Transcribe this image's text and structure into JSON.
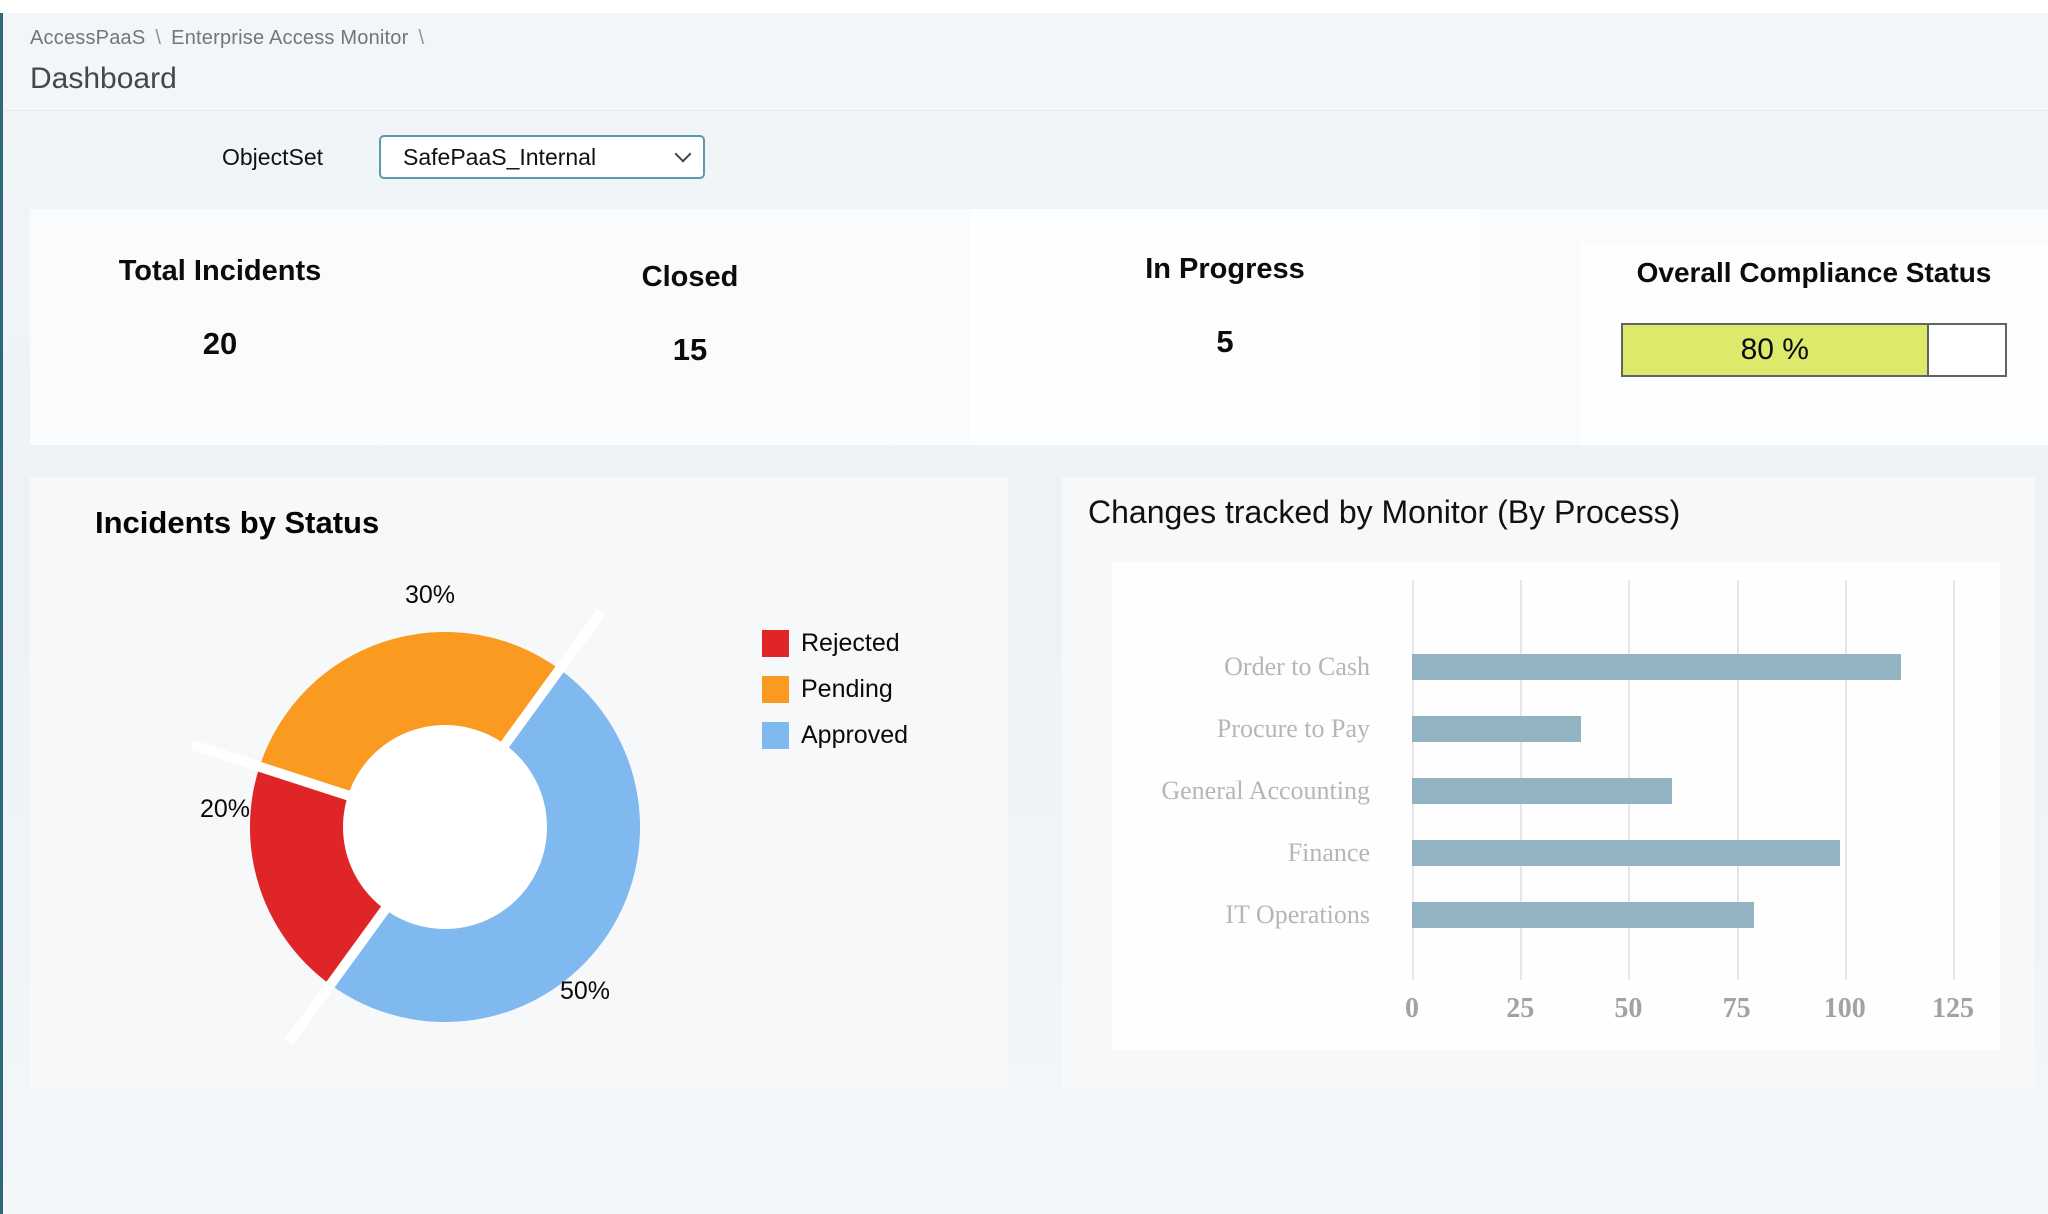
{
  "header": {
    "breadcrumb": [
      "AccessPaaS",
      "Enterprise Access Monitor"
    ],
    "breadcrumb_separator": "\\",
    "title": "Dashboard"
  },
  "filter": {
    "label": "ObjectSet",
    "value": "SafePaaS_Internal"
  },
  "kpis": [
    {
      "label": "Total Incidents",
      "value": "20"
    },
    {
      "label": "Closed",
      "value": "15"
    },
    {
      "label": "In Progress",
      "value": "5"
    }
  ],
  "compliance": {
    "title": "Overall Compliance Status",
    "percent": 80,
    "label": "80 %",
    "fill_color": "#dde96b",
    "border_color": "#636363"
  },
  "chart_data": [
    {
      "type": "pie",
      "variant": "donut",
      "title": "Incidents by Status",
      "slices": [
        {
          "label": "Rejected",
          "value": 20,
          "display": "20%",
          "color": "#e02529"
        },
        {
          "label": "Pending",
          "value": 30,
          "display": "30%",
          "color": "#fb9a20"
        },
        {
          "label": "Approved",
          "value": 50,
          "display": "50%",
          "color": "#80b9f0"
        }
      ],
      "draw_order": [
        "Pending",
        "Approved",
        "Rejected"
      ],
      "start_angle_deg": 288,
      "legend_order": [
        "Rejected",
        "Pending",
        "Approved"
      ],
      "legend_position": "right"
    },
    {
      "type": "bar",
      "orientation": "horizontal",
      "title": "Changes tracked by Monitor (By Process)",
      "categories": [
        "Order to Cash",
        "Procure to Pay",
        "General Accounting",
        "Finance",
        "IT Operations"
      ],
      "values": [
        113,
        39,
        60,
        99,
        79
      ],
      "xlim": [
        0,
        125
      ],
      "xticks": [
        0,
        25,
        50,
        75,
        100,
        125
      ],
      "bar_color": "#92b3c2",
      "grid": true,
      "legend_position": "none"
    }
  ]
}
